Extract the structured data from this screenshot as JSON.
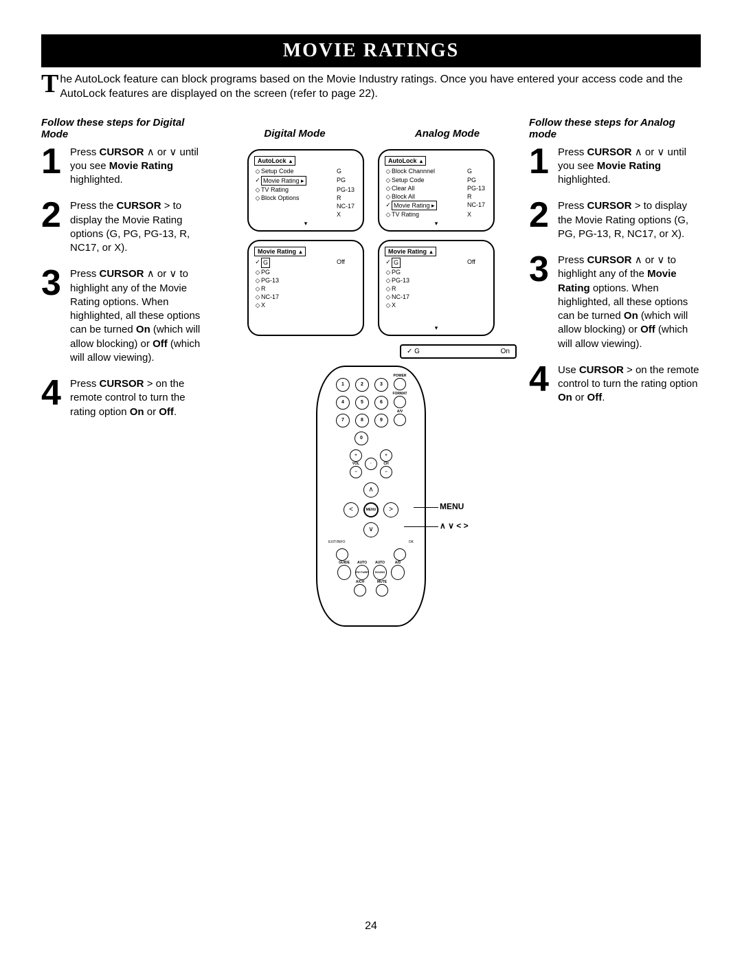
{
  "header": "MOVIE RATINGS",
  "intro": {
    "drop": "T",
    "text": "he AutoLock feature can block programs based on the Movie Industry ratings.   Once you have entered your access code and the AutoLock features are displayed on the screen (refer to page 22)."
  },
  "leftTitle": "Follow these steps for Digital Mode",
  "rightTitle": "Follow these steps for Analog mode",
  "digitalModeLabel": "Digital Mode",
  "analogModeLabel": "Analog Mode",
  "leftSteps": [
    {
      "n": "1",
      "html": "Press <b>CURSOR</b>  ∧  or ∨ until you see <b>Movie Rating</b>  highlighted."
    },
    {
      "n": "2",
      "html": "Press the <b>CURSOR</b>  > to display the Movie Rating options (G, PG, PG-13, R, NC17, or X)."
    },
    {
      "n": "3",
      "html": "Press <b>CURSOR</b>  ∧ or ∨ to highlight any of the Movie Rating options. When highlighted, all these options can be turned <b>On</b> (which will allow blocking) or <b>Off</b>  (which will allow viewing)."
    },
    {
      "n": "4",
      "html": "Press <b>CURSOR</b> > on the remote control to turn the rating option <b>On</b> or <b>Off</b>."
    }
  ],
  "rightSteps": [
    {
      "n": "1",
      "html": "Press <b>CURSOR</b>  ∧  or ∨ until you see <b>Movie Rating</b> highlighted."
    },
    {
      "n": "2",
      "html": "Press <b>CURSOR</b>  > to display the Movie Rating options (G, PG, PG-13, R, NC17, or X)."
    },
    {
      "n": "3",
      "html": "Press <b>CURSOR</b>  ∧  or ∨ to highlight any of the <b>Movie Rating</b> options.  When highlighted, all these options can be turned <b>On</b> (which will allow blocking) or <b>Off</b> (which will allow viewing)."
    },
    {
      "n": "4",
      "html": "Use <b>CURSOR</b> > on the remote control to turn the rating option <b>On</b> or <b>Off</b>."
    }
  ],
  "osd1d": {
    "title": "AutoLock",
    "rows": [
      {
        "d": "◇",
        "l": "Setup Code",
        "v": "G"
      },
      {
        "d": "✓",
        "l": "Movie Rating",
        "v": "PG",
        "box": true,
        "arrow": "▸"
      },
      {
        "d": "◇",
        "l": "TV Rating",
        "v": "PG-13"
      },
      {
        "d": "◇",
        "l": "Block Options",
        "v": "R"
      },
      {
        "d": "",
        "l": "",
        "v": "NC-17"
      },
      {
        "d": "",
        "l": "",
        "v": "X"
      }
    ]
  },
  "osd1a": {
    "title": "AutoLock",
    "rows": [
      {
        "d": "◇",
        "l": "Block Channnel",
        "v": "G"
      },
      {
        "d": "◇",
        "l": "Setup Code",
        "v": "PG"
      },
      {
        "d": "◇",
        "l": "Clear All",
        "v": "PG-13"
      },
      {
        "d": "◇",
        "l": "Block All",
        "v": "R"
      },
      {
        "d": "✓",
        "l": "Movie Rating",
        "v": "NC-17",
        "box": true,
        "arrow": "▸"
      },
      {
        "d": "◇",
        "l": "TV Rating",
        "v": "X"
      }
    ]
  },
  "osd2d": {
    "title": "Movie Rating",
    "rows": [
      {
        "d": "✓",
        "l": "G",
        "v": "Off",
        "box": true
      },
      {
        "d": "◇",
        "l": "PG",
        "v": ""
      },
      {
        "d": "◇",
        "l": "PG-13",
        "v": ""
      },
      {
        "d": "◇",
        "l": "R",
        "v": ""
      },
      {
        "d": "◇",
        "l": "NC-17",
        "v": ""
      },
      {
        "d": "◇",
        "l": "X",
        "v": ""
      }
    ]
  },
  "osd2a": {
    "title": "Movie Rating",
    "titleArrow": "▴",
    "rows": [
      {
        "d": "✓",
        "l": "G",
        "v": "Off",
        "box": true
      },
      {
        "d": "◇",
        "l": "PG",
        "v": ""
      },
      {
        "d": "◇",
        "l": "PG-13",
        "v": ""
      },
      {
        "d": "◇",
        "l": "R",
        "v": ""
      },
      {
        "d": "◇",
        "l": "NC-17",
        "v": ""
      },
      {
        "d": "◇",
        "l": "X",
        "v": ""
      }
    ]
  },
  "gOn": {
    "l": "✓ G",
    "r": "On"
  },
  "remote": {
    "topRows": [
      [
        "1",
        "2",
        "3",
        "POWER"
      ],
      [
        "4",
        "5",
        "6",
        "FORMAT"
      ],
      [
        "7",
        "8",
        "9",
        "A/V"
      ],
      [
        "",
        "0",
        "",
        ""
      ]
    ],
    "volch": [
      "+",
      "VOL",
      "−",
      "·",
      "+",
      "CH",
      "−"
    ],
    "bottomRow": [
      "GUIDE",
      "AUTO",
      "AUTO",
      "A/D"
    ],
    "bottomRow2": [
      "",
      "PICTURE",
      "SOUND",
      ""
    ],
    "lastRow": [
      "A/CH",
      "MUTE"
    ],
    "exit": "EXIT/INFO",
    "ok": "OK"
  },
  "menuLabel": "MENU",
  "cursorLabel": "∧  ∨  <  >",
  "pageNum": "24"
}
